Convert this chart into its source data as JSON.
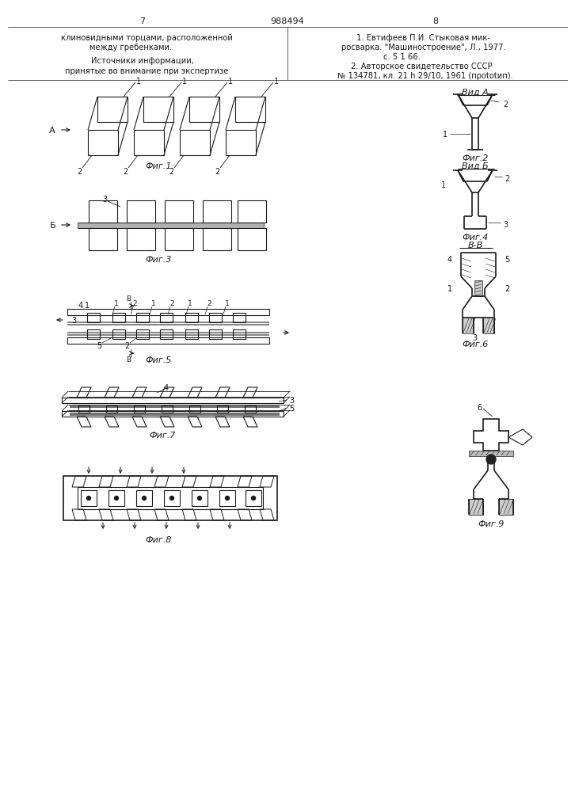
{
  "page_number_left": "7",
  "page_number_center": "988494",
  "page_number_right": "8",
  "text_left_1": "клиновидными торцами, расположенной",
  "text_left_2": "между гребенками.",
  "text_left_3": "Источники информации,",
  "text_left_4": "принятые во внимание при экспертизе",
  "text_right_1": "1. Евтифеев П.И. Стыковая мик-",
  "text_right_2": "росварка. \"Машиностроение\", Л., 1977.",
  "text_right_3": "с. 5 1 66.",
  "text_right_4": "2. Авторское свидетельство СССР",
  "text_right_5": "№ 134781, кл. 21 h 29/10, 1961 (прototип).",
  "background_color": "#ffffff",
  "line_color": "#1a1a1a"
}
